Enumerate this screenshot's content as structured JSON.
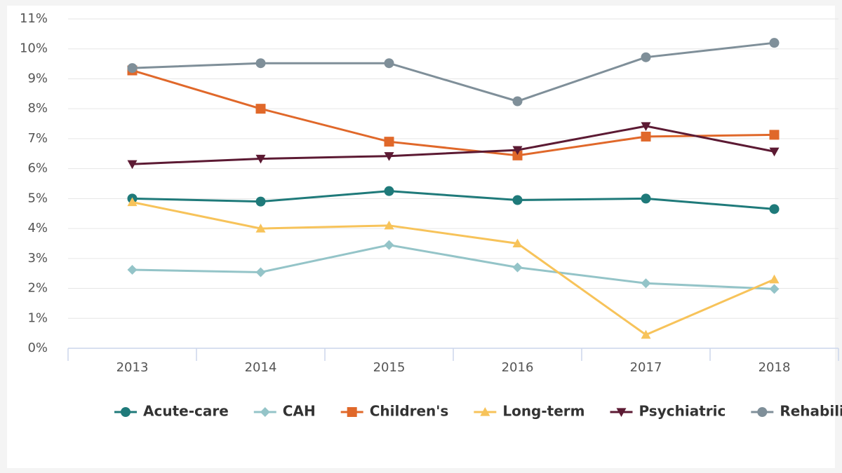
{
  "chart_data": {
    "type": "line",
    "categories": [
      "2013",
      "2014",
      "2015",
      "2016",
      "2017",
      "2018"
    ],
    "series": [
      {
        "name": "Acute-care",
        "color": "#1f7a7a",
        "marker": "circle",
        "values": [
          5.0,
          4.9,
          5.25,
          4.95,
          5.0,
          4.65
        ]
      },
      {
        "name": "CAH",
        "color": "#94c4c8",
        "marker": "diamond",
        "values": [
          2.62,
          2.54,
          3.45,
          2.7,
          2.17,
          1.98
        ]
      },
      {
        "name": "Children's",
        "color": "#e0682a",
        "marker": "square",
        "values": [
          9.28,
          8.0,
          6.9,
          6.44,
          7.07,
          7.13
        ]
      },
      {
        "name": "Long-term",
        "color": "#f7c35a",
        "marker": "triangle",
        "values": [
          4.88,
          4.0,
          4.1,
          3.5,
          0.45,
          2.3
        ]
      },
      {
        "name": "Psychiatric",
        "color": "#5c1a33",
        "marker": "triangle-down",
        "values": [
          6.15,
          6.33,
          6.42,
          6.62,
          7.42,
          6.57
        ]
      },
      {
        "name": "Rehabilitation",
        "color": "#7f8f99",
        "marker": "circle",
        "values": [
          9.36,
          9.52,
          9.52,
          8.25,
          9.72,
          10.2
        ]
      }
    ],
    "ylim": [
      0,
      11
    ],
    "yticks": [
      {
        "value": 0,
        "label": "0%"
      },
      {
        "value": 1,
        "label": "1%"
      },
      {
        "value": 2,
        "label": "2%"
      },
      {
        "value": 3,
        "label": "3%"
      },
      {
        "value": 4,
        "label": "4%"
      },
      {
        "value": 5,
        "label": "5%"
      },
      {
        "value": 6,
        "label": "6%"
      },
      {
        "value": 7,
        "label": "7%"
      },
      {
        "value": 8,
        "label": "8%"
      },
      {
        "value": 9,
        "label": "9%"
      },
      {
        "value": 10,
        "label": "10%"
      },
      {
        "value": 11,
        "label": "11%"
      }
    ],
    "grid": true,
    "legend": "bottom"
  }
}
